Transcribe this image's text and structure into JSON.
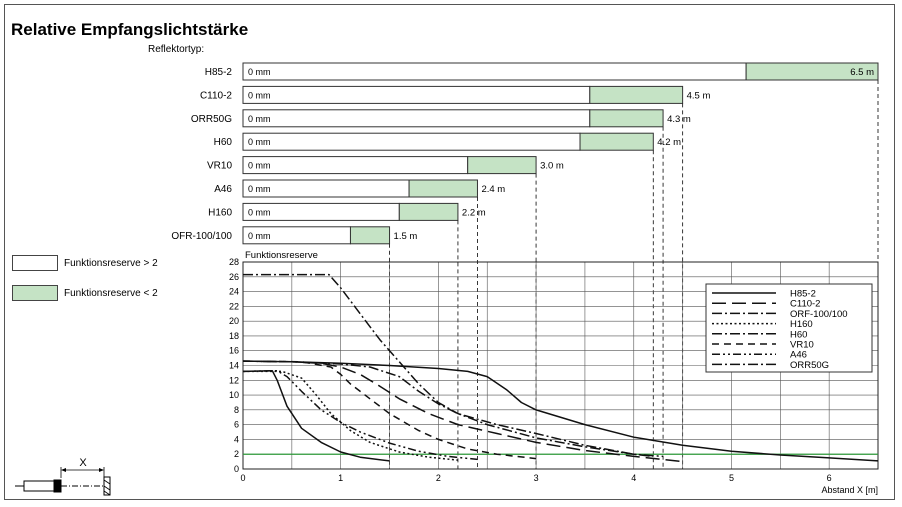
{
  "chart_data": {
    "title": "Relative Empfangslichtstärke",
    "range_chart": {
      "type": "bar",
      "subtitle": "Reflektortyp:",
      "start_label": "0 mm",
      "categories": [
        "H85-2",
        "C110-2",
        "ORR50G",
        "H60",
        "VR10",
        "A46",
        "H160",
        "OFR-100/100"
      ],
      "bars": [
        {
          "name": "H85-2",
          "reserve_end": 5.15,
          "max": 6.5,
          "label": "6.5 m"
        },
        {
          "name": "C110-2",
          "reserve_end": 3.55,
          "max": 4.5,
          "label": "4.5 m"
        },
        {
          "name": "ORR50G",
          "reserve_end": 3.55,
          "max": 4.3,
          "label": "4.3 m"
        },
        {
          "name": "H60",
          "reserve_end": 3.45,
          "max": 4.2,
          "label": "4.2 m"
        },
        {
          "name": "VR10",
          "reserve_end": 2.3,
          "max": 3.0,
          "label": "3.0 m"
        },
        {
          "name": "A46",
          "reserve_end": 1.7,
          "max": 2.4,
          "label": "2.4 m"
        },
        {
          "name": "H160",
          "reserve_end": 1.6,
          "max": 2.2,
          "label": "2.2 m"
        },
        {
          "name": "OFR-100/100",
          "reserve_end": 1.1,
          "max": 1.5,
          "label": "1.5 m"
        }
      ]
    },
    "legend_boxes": [
      {
        "label": "Funktionsreserve > 2",
        "color": "#ffffff"
      },
      {
        "label": "Funktionsreserve < 2",
        "color": "#c5e3c5"
      }
    ],
    "curve_chart": {
      "type": "line",
      "ylabel": "Funktionsreserve",
      "xlabel": "Abstand X [m]",
      "xlim": [
        0,
        6.5
      ],
      "ylim": [
        0,
        28
      ],
      "xticks": [
        0,
        1,
        2,
        3,
        4,
        5,
        6
      ],
      "yticks": [
        0,
        2,
        4,
        6,
        8,
        10,
        12,
        14,
        16,
        18,
        20,
        22,
        24,
        26,
        28
      ],
      "threshold": 2,
      "threshold_color": "#2e9a3a",
      "legend_position": "top-right",
      "legend": [
        "H85-2",
        "C110-2",
        "ORF-100/100",
        "H160",
        "H60",
        "VR10",
        "A46",
        "ORR50G"
      ],
      "series": [
        {
          "name": "H85-2",
          "dash": "solid",
          "points": [
            [
              0.0,
              14.6
            ],
            [
              0.5,
              14.5
            ],
            [
              1.0,
              14.3
            ],
            [
              1.5,
              14.0
            ],
            [
              2.0,
              13.6
            ],
            [
              2.3,
              13.2
            ],
            [
              2.5,
              12.5
            ],
            [
              2.7,
              10.7
            ],
            [
              2.85,
              9.0
            ],
            [
              3.0,
              8.0
            ],
            [
              3.5,
              6.0
            ],
            [
              4.0,
              4.3
            ],
            [
              4.5,
              3.2
            ],
            [
              5.0,
              2.4
            ],
            [
              5.5,
              1.9
            ],
            [
              6.0,
              1.5
            ],
            [
              6.5,
              1.1
            ]
          ]
        },
        {
          "name": "C110-2",
          "dash": "long-dash",
          "points": [
            [
              0.0,
              14.6
            ],
            [
              0.5,
              14.5
            ],
            [
              0.8,
              14.3
            ],
            [
              1.0,
              13.8
            ],
            [
              1.2,
              12.8
            ],
            [
              1.4,
              11.2
            ],
            [
              1.6,
              9.5
            ],
            [
              1.9,
              7.5
            ],
            [
              2.2,
              6.0
            ],
            [
              2.6,
              4.8
            ],
            [
              3.0,
              3.6
            ],
            [
              3.5,
              2.5
            ],
            [
              4.0,
              1.7
            ],
            [
              4.5,
              1.0
            ]
          ]
        },
        {
          "name": "ORF-100/100",
          "dash": "solid",
          "points": [
            [
              0.0,
              13.2
            ],
            [
              0.3,
              13.3
            ],
            [
              0.35,
              12.0
            ],
            [
              0.45,
              8.5
            ],
            [
              0.6,
              5.5
            ],
            [
              0.8,
              3.6
            ],
            [
              1.0,
              2.3
            ],
            [
              1.2,
              1.6
            ],
            [
              1.5,
              1.1
            ]
          ]
        },
        {
          "name": "H160",
          "dash": "dotted",
          "points": [
            [
              0.0,
              13.2
            ],
            [
              0.4,
              13.2
            ],
            [
              0.6,
              12.3
            ],
            [
              0.75,
              10.0
            ],
            [
              0.9,
              7.5
            ],
            [
              1.1,
              5.2
            ],
            [
              1.3,
              3.6
            ],
            [
              1.6,
              2.3
            ],
            [
              1.9,
              1.6
            ],
            [
              2.2,
              1.2
            ]
          ]
        },
        {
          "name": "H60",
          "dash": "dash-dot",
          "points": [
            [
              0.0,
              14.6
            ],
            [
              0.5,
              14.5
            ],
            [
              1.0,
              14.2
            ],
            [
              1.3,
              13.8
            ],
            [
              1.6,
              12.5
            ],
            [
              1.8,
              10.5
            ],
            [
              2.0,
              8.8
            ],
            [
              2.2,
              7.5
            ],
            [
              2.6,
              6.0
            ],
            [
              3.0,
              4.8
            ],
            [
              3.5,
              3.2
            ],
            [
              4.0,
              2.0
            ],
            [
              4.2,
              1.7
            ]
          ]
        },
        {
          "name": "VR10",
          "dash": "dash",
          "points": [
            [
              0.0,
              14.6
            ],
            [
              0.6,
              14.5
            ],
            [
              0.9,
              13.8
            ],
            [
              1.0,
              12.8
            ],
            [
              1.1,
              11.5
            ],
            [
              1.3,
              9.5
            ],
            [
              1.5,
              7.5
            ],
            [
              1.8,
              5.2
            ],
            [
              2.0,
              4.0
            ],
            [
              2.3,
              2.7
            ],
            [
              2.6,
              2.0
            ],
            [
              3.0,
              1.4
            ]
          ]
        },
        {
          "name": "A46",
          "dash": "dash-dot-dot",
          "points": [
            [
              0.0,
              13.2
            ],
            [
              0.35,
              13.3
            ],
            [
              0.45,
              12.5
            ],
            [
              0.6,
              10.5
            ],
            [
              0.8,
              8.0
            ],
            [
              1.0,
              6.3
            ],
            [
              1.2,
              5.0
            ],
            [
              1.5,
              3.5
            ],
            [
              1.8,
              2.4
            ],
            [
              2.1,
              1.7
            ],
            [
              2.4,
              1.3
            ]
          ]
        },
        {
          "name": "ORR50G",
          "dash": "dash-dot",
          "points": [
            [
              0.0,
              26.3
            ],
            [
              0.88,
              26.3
            ],
            [
              1.0,
              24.5
            ],
            [
              1.2,
              21.0
            ],
            [
              1.4,
              17.5
            ],
            [
              1.6,
              14.5
            ],
            [
              1.8,
              11.5
            ],
            [
              2.0,
              9.0
            ],
            [
              2.2,
              7.5
            ],
            [
              2.5,
              6.0
            ],
            [
              3.0,
              4.2
            ],
            [
              3.5,
              3.0
            ],
            [
              4.0,
              2.0
            ],
            [
              4.3,
              1.7
            ]
          ]
        }
      ]
    },
    "schematic": {
      "label": "X"
    }
  }
}
